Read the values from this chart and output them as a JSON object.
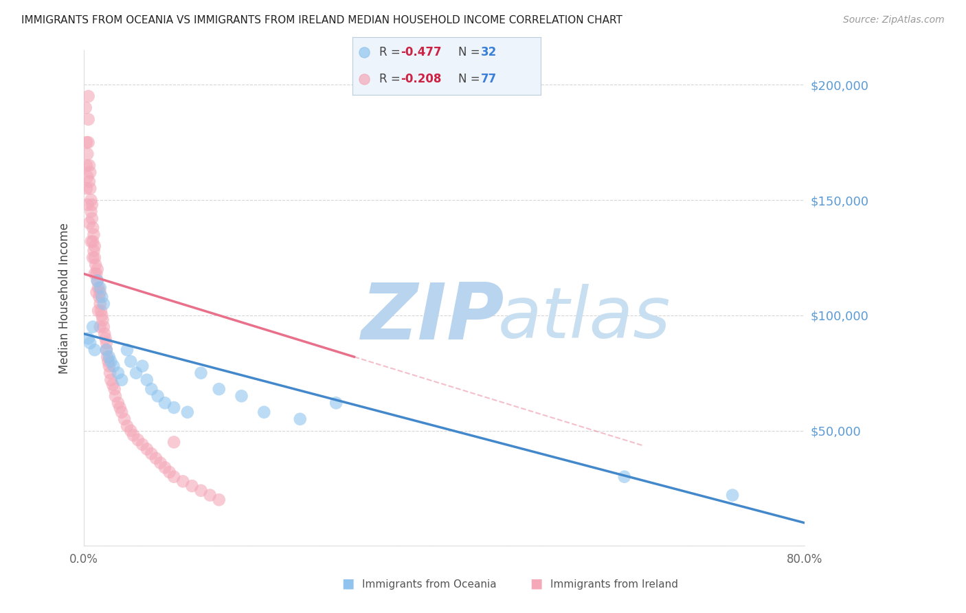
{
  "title": "IMMIGRANTS FROM OCEANIA VS IMMIGRANTS FROM IRELAND MEDIAN HOUSEHOLD INCOME CORRELATION CHART",
  "source": "Source: ZipAtlas.com",
  "ylabel": "Median Household Income",
  "xlim": [
    0.0,
    0.8
  ],
  "ylim": [
    0,
    215000
  ],
  "background_color": "#ffffff",
  "grid_color": "#cccccc",
  "watermark_zip_color": "#b8d4ee",
  "watermark_atlas_color": "#c8dff2",
  "oceania_color": "#90C4EE",
  "ireland_color": "#F4A8B8",
  "oceania_line_color": "#4488CC",
  "ireland_line_color": "#E8708A",
  "R_oceania": -0.477,
  "N_oceania": 32,
  "R_ireland": -0.208,
  "N_ireland": 77,
  "oceania_x": [
    0.005,
    0.007,
    0.01,
    0.012,
    0.015,
    0.018,
    0.02,
    0.022,
    0.025,
    0.028,
    0.03,
    0.033,
    0.038,
    0.042,
    0.048,
    0.052,
    0.058,
    0.065,
    0.07,
    0.075,
    0.082,
    0.09,
    0.1,
    0.115,
    0.13,
    0.15,
    0.175,
    0.2,
    0.24,
    0.28,
    0.6,
    0.72
  ],
  "oceania_y": [
    90000,
    88000,
    95000,
    85000,
    115000,
    112000,
    108000,
    105000,
    85000,
    82000,
    80000,
    78000,
    75000,
    72000,
    85000,
    80000,
    75000,
    78000,
    72000,
    68000,
    65000,
    62000,
    60000,
    58000,
    75000,
    68000,
    65000,
    58000,
    55000,
    62000,
    30000,
    22000
  ],
  "ireland_x": [
    0.002,
    0.003,
    0.003,
    0.004,
    0.004,
    0.005,
    0.005,
    0.005,
    0.006,
    0.006,
    0.007,
    0.007,
    0.008,
    0.008,
    0.009,
    0.009,
    0.01,
    0.01,
    0.011,
    0.011,
    0.012,
    0.012,
    0.013,
    0.014,
    0.015,
    0.015,
    0.016,
    0.017,
    0.018,
    0.018,
    0.019,
    0.02,
    0.021,
    0.022,
    0.023,
    0.024,
    0.025,
    0.025,
    0.026,
    0.027,
    0.028,
    0.029,
    0.03,
    0.032,
    0.034,
    0.035,
    0.038,
    0.04,
    0.042,
    0.045,
    0.048,
    0.052,
    0.055,
    0.06,
    0.065,
    0.07,
    0.075,
    0.08,
    0.085,
    0.09,
    0.095,
    0.1,
    0.11,
    0.12,
    0.13,
    0.14,
    0.15,
    0.003,
    0.004,
    0.006,
    0.008,
    0.01,
    0.012,
    0.014,
    0.016,
    0.018,
    0.1
  ],
  "ireland_y": [
    190000,
    175000,
    165000,
    170000,
    160000,
    195000,
    185000,
    175000,
    165000,
    158000,
    162000,
    155000,
    150000,
    145000,
    148000,
    142000,
    138000,
    132000,
    135000,
    128000,
    130000,
    125000,
    122000,
    118000,
    115000,
    120000,
    112000,
    108000,
    110000,
    105000,
    102000,
    100000,
    98000,
    95000,
    92000,
    90000,
    88000,
    85000,
    82000,
    80000,
    78000,
    75000,
    72000,
    70000,
    68000,
    65000,
    62000,
    60000,
    58000,
    55000,
    52000,
    50000,
    48000,
    46000,
    44000,
    42000,
    40000,
    38000,
    36000,
    34000,
    32000,
    30000,
    28000,
    26000,
    24000,
    22000,
    20000,
    155000,
    148000,
    140000,
    132000,
    125000,
    118000,
    110000,
    102000,
    95000,
    45000
  ],
  "oceania_line_x0": 0.0,
  "oceania_line_y0": 92000,
  "oceania_line_x1": 0.8,
  "oceania_line_y1": 10000,
  "ireland_line_x0": 0.0,
  "ireland_line_y0": 118000,
  "ireland_line_x1_solid": 0.3,
  "ireland_line_y1_solid": 82000,
  "ireland_line_x1_dash": 0.62,
  "ireland_line_y1_dash": 55000
}
